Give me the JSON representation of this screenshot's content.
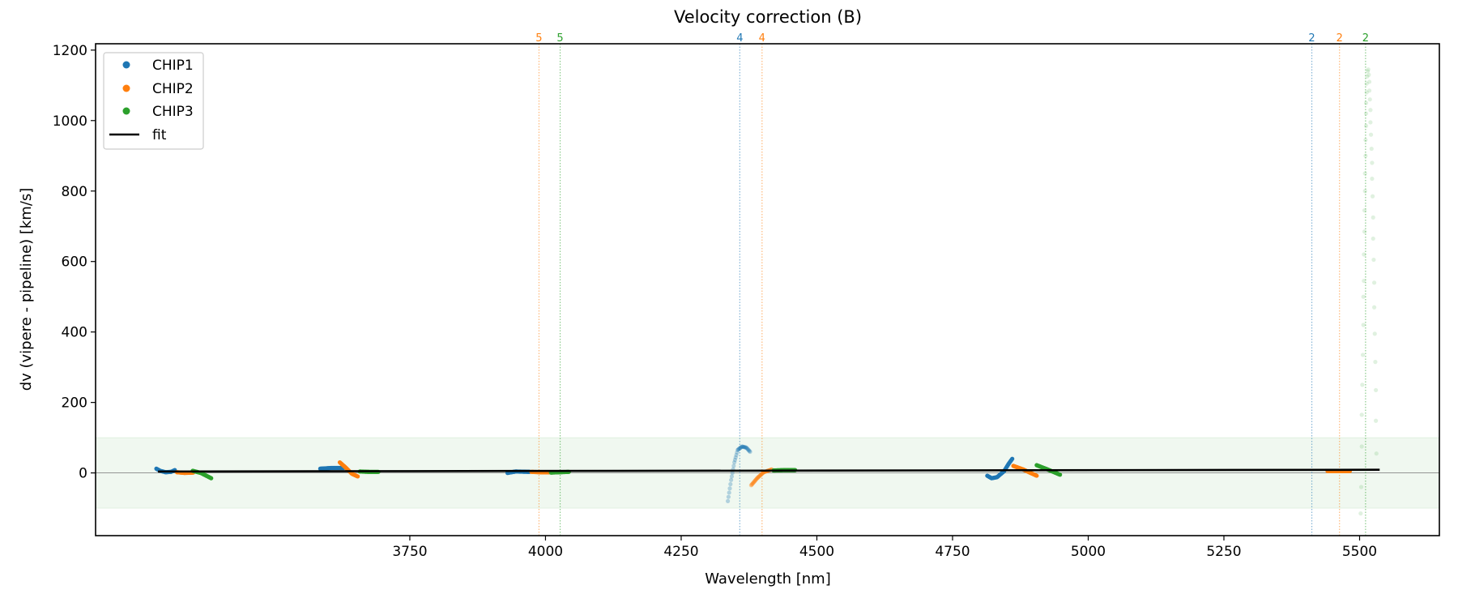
{
  "chart_data": {
    "type": "scatter",
    "title": "Velocity correction (B)",
    "xlabel": "Wavelength [nm]",
    "ylabel": "dv (vipere - pipeline) [km/s]",
    "xlim": [
      3171,
      5647
    ],
    "ylim": [
      -178,
      1218
    ],
    "xticks": [
      3750,
      4000,
      4250,
      4500,
      4750,
      5000,
      5250,
      5500
    ],
    "yticks": [
      0,
      200,
      400,
      600,
      800,
      1000,
      1200
    ],
    "legend_position": "top-left",
    "legend": [
      "CHIP1",
      "CHIP2",
      "CHIP3",
      "fit"
    ],
    "colors": {
      "CHIP1": "#1f77b4",
      "CHIP2": "#ff7f0e",
      "CHIP3": "#2ca02c",
      "fit": "#000000",
      "band": "#2ca02c"
    },
    "band": [
      -100,
      100
    ],
    "fit": {
      "x": [
        3286,
        5537
      ],
      "y": [
        4,
        9
      ]
    },
    "order_lines": [
      {
        "x": 3988,
        "label": "5",
        "series": "CHIP2"
      },
      {
        "x": 4027,
        "label": "5",
        "series": "CHIP3"
      },
      {
        "x": 4358,
        "label": "4",
        "series": "CHIP1"
      },
      {
        "x": 4399,
        "label": "4",
        "series": "CHIP2"
      },
      {
        "x": 5412,
        "label": "2",
        "series": "CHIP1"
      },
      {
        "x": 5463,
        "label": "2",
        "series": "CHIP2"
      },
      {
        "x": 5511,
        "label": "2",
        "series": "CHIP3"
      }
    ],
    "segments": [
      {
        "series": "CHIP1",
        "alpha": 1,
        "points": [
          [
            3283,
            12
          ],
          [
            3290,
            6
          ],
          [
            3300,
            2
          ],
          [
            3310,
            3
          ],
          [
            3317,
            8
          ]
        ]
      },
      {
        "series": "CHIP2",
        "alpha": 1,
        "points": [
          [
            3321,
            2
          ],
          [
            3335,
            0
          ],
          [
            3351,
            1
          ]
        ]
      },
      {
        "series": "CHIP3",
        "alpha": 1,
        "points": [
          [
            3350,
            6
          ],
          [
            3365,
            0
          ],
          [
            3384,
            -15
          ]
        ]
      },
      {
        "series": "CHIP1",
        "alpha": 1,
        "points": [
          [
            3585,
            12
          ],
          [
            3605,
            14
          ],
          [
            3628,
            14
          ]
        ]
      },
      {
        "series": "CHIP2",
        "alpha": 1,
        "points": [
          [
            3621,
            30
          ],
          [
            3632,
            15
          ],
          [
            3643,
            -2
          ],
          [
            3654,
            -10
          ]
        ]
      },
      {
        "series": "CHIP3",
        "alpha": 1,
        "points": [
          [
            3658,
            4
          ],
          [
            3675,
            3
          ],
          [
            3692,
            3
          ]
        ]
      },
      {
        "series": "CHIP1",
        "alpha": 1,
        "points": [
          [
            3930,
            0
          ],
          [
            3945,
            4
          ],
          [
            3971,
            3
          ]
        ]
      },
      {
        "series": "CHIP2",
        "alpha": 1,
        "points": [
          [
            3974,
            3
          ],
          [
            3990,
            2
          ],
          [
            4009,
            2
          ]
        ]
      },
      {
        "series": "CHIP3",
        "alpha": 1,
        "points": [
          [
            4010,
            1
          ],
          [
            4025,
            2
          ],
          [
            4043,
            3
          ]
        ]
      },
      {
        "series": "CHIP1",
        "alpha": 0.3,
        "points": [
          [
            4336,
            -80
          ],
          [
            4342,
            -20
          ],
          [
            4348,
            30
          ],
          [
            4354,
            65
          ],
          [
            4362,
            75
          ],
          [
            4370,
            72
          ],
          [
            4377,
            60
          ]
        ]
      },
      {
        "series": "CHIP2",
        "alpha": 0.4,
        "points": [
          [
            4379,
            -35
          ],
          [
            4390,
            -15
          ],
          [
            4402,
            2
          ],
          [
            4417,
            10
          ]
        ]
      },
      {
        "series": "CHIP3",
        "alpha": 1,
        "points": [
          [
            4420,
            7
          ],
          [
            4440,
            8
          ],
          [
            4460,
            8
          ]
        ]
      },
      {
        "series": "CHIP1",
        "alpha": 1,
        "points": [
          [
            4814,
            -8
          ],
          [
            4822,
            -15
          ],
          [
            4832,
            -12
          ],
          [
            4845,
            5
          ],
          [
            4853,
            25
          ],
          [
            4860,
            40
          ]
        ]
      },
      {
        "series": "CHIP2",
        "alpha": 1,
        "points": [
          [
            4862,
            20
          ],
          [
            4880,
            10
          ],
          [
            4905,
            -8
          ]
        ]
      },
      {
        "series": "CHIP3",
        "alpha": 1,
        "points": [
          [
            4905,
            22
          ],
          [
            4925,
            10
          ],
          [
            4948,
            -5
          ]
        ]
      },
      {
        "series": "CHIP2",
        "alpha": 1,
        "points": [
          [
            5441,
            5
          ],
          [
            5460,
            5
          ],
          [
            5482,
            5
          ]
        ]
      }
    ],
    "outliers": {
      "series": "CHIP3",
      "alpha": 0.15,
      "points": [
        [
          5502,
          -115
        ],
        [
          5503,
          -40
        ],
        [
          5504,
          75
        ],
        [
          5504,
          165
        ],
        [
          5505,
          250
        ],
        [
          5506,
          335
        ],
        [
          5507,
          420
        ],
        [
          5507,
          500
        ],
        [
          5508,
          545
        ],
        [
          5508,
          620
        ],
        [
          5509,
          685
        ],
        [
          5509,
          745
        ],
        [
          5510,
          800
        ],
        [
          5510,
          850
        ],
        [
          5511,
          900
        ],
        [
          5511,
          945
        ],
        [
          5512,
          985
        ],
        [
          5512,
          1020
        ],
        [
          5512,
          1050
        ],
        [
          5513,
          1080
        ],
        [
          5513,
          1105
        ],
        [
          5514,
          1125
        ],
        [
          5515,
          1140
        ],
        [
          5516,
          1145
        ],
        [
          5517,
          1130
        ],
        [
          5518,
          1110
        ],
        [
          5518,
          1085
        ],
        [
          5519,
          1060
        ],
        [
          5520,
          1030
        ],
        [
          5520,
          995
        ],
        [
          5521,
          960
        ],
        [
          5522,
          920
        ],
        [
          5523,
          880
        ],
        [
          5523,
          835
        ],
        [
          5524,
          785
        ],
        [
          5525,
          725
        ],
        [
          5525,
          665
        ],
        [
          5526,
          605
        ],
        [
          5527,
          540
        ],
        [
          5527,
          470
        ],
        [
          5528,
          395
        ],
        [
          5529,
          315
        ],
        [
          5530,
          235
        ],
        [
          5530,
          148
        ],
        [
          5531,
          55
        ]
      ]
    }
  }
}
